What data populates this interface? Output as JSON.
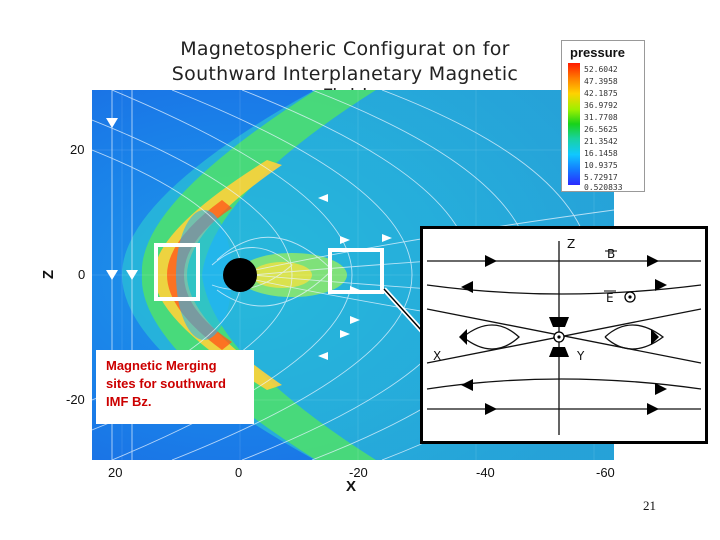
{
  "title": {
    "line1": "Magnetospheric Configurat on for",
    "line2": "Southward Interplanetary Magnetic Field"
  },
  "axes": {
    "x_label": "X",
    "y_label": "Z",
    "x_ticks": [
      "20",
      "0",
      "-20",
      "-40",
      "-60"
    ],
    "y_ticks": [
      "20",
      "0",
      "-20"
    ]
  },
  "legend": {
    "title": "pressure",
    "levels": [
      "52.6042",
      "47.3958",
      "42.1875",
      "36.9792",
      "31.7708",
      "26.5625",
      "21.3542",
      "16.1458",
      "10.9375",
      "5.72917",
      "0.520833"
    ]
  },
  "annotation": {
    "lines": [
      "Magnetic Merging",
      "sites for southward",
      "IMF Bz."
    ]
  },
  "inset": {
    "z_label": "Z",
    "b_label": "B",
    "e_label": "E",
    "x_label": "X",
    "y_label": "Y"
  },
  "slide_number": "21",
  "colors": {
    "highlight_box": "#ffffff",
    "annotation_text": "#cc0000",
    "earth": "#000000"
  }
}
